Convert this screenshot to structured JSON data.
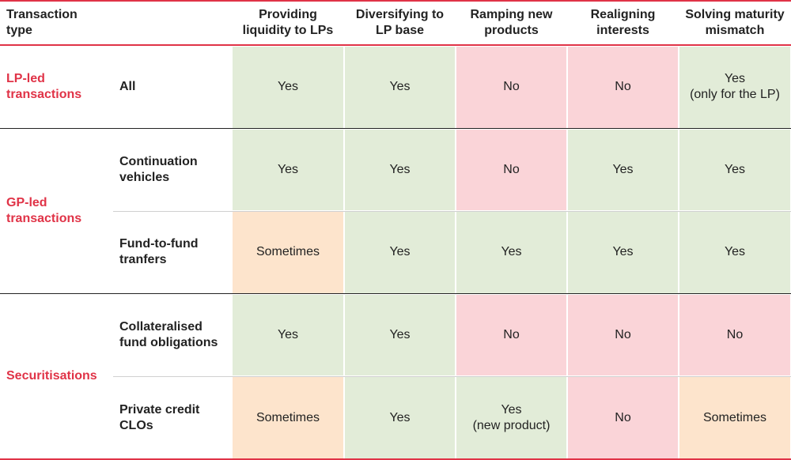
{
  "header": {
    "label": "Transaction type",
    "columns": [
      "Providing liquidity to LPs",
      "Diversifying to LP base",
      "Ramping new products",
      "Realigning interests",
      "Solving maturity mismatch"
    ]
  },
  "groups": [
    {
      "label": "LP-led transactions",
      "rows": [
        {
          "label": "All",
          "cells": [
            "Yes",
            "Yes",
            "No",
            "No",
            "Yes\n(only for the LP)"
          ],
          "colors": [
            "#e2ecd8",
            "#e2ecd8",
            "#fad4d8",
            "#fad4d8",
            "#e2ecd8"
          ]
        }
      ]
    },
    {
      "label": "GP-led transactions",
      "rows": [
        {
          "label": "Continuation vehicles",
          "cells": [
            "Yes",
            "Yes",
            "No",
            "Yes",
            "Yes"
          ],
          "colors": [
            "#e2ecd8",
            "#e2ecd8",
            "#fad4d8",
            "#e2ecd8",
            "#e2ecd8"
          ]
        },
        {
          "label": "Fund-to-fund tranfers",
          "cells": [
            "Sometimes",
            "Yes",
            "Yes",
            "Yes",
            "Yes"
          ],
          "colors": [
            "#fde4cc",
            "#e2ecd8",
            "#e2ecd8",
            "#e2ecd8",
            "#e2ecd8"
          ]
        }
      ]
    },
    {
      "label": "Securitisations",
      "rows": [
        {
          "label": "Collateralised fund obligations",
          "cells": [
            "Yes",
            "Yes",
            "No",
            "No",
            "No"
          ],
          "colors": [
            "#e2ecd8",
            "#e2ecd8",
            "#fad4d8",
            "#fad4d8",
            "#fad4d8"
          ]
        },
        {
          "label": "Private credit CLOs",
          "cells": [
            "Sometimes",
            "Yes",
            "Yes\n(new product)",
            "No",
            "Sometimes"
          ],
          "colors": [
            "#fde4cc",
            "#e2ecd8",
            "#e2ecd8",
            "#fad4d8",
            "#fde4cc"
          ]
        }
      ]
    }
  ]
}
